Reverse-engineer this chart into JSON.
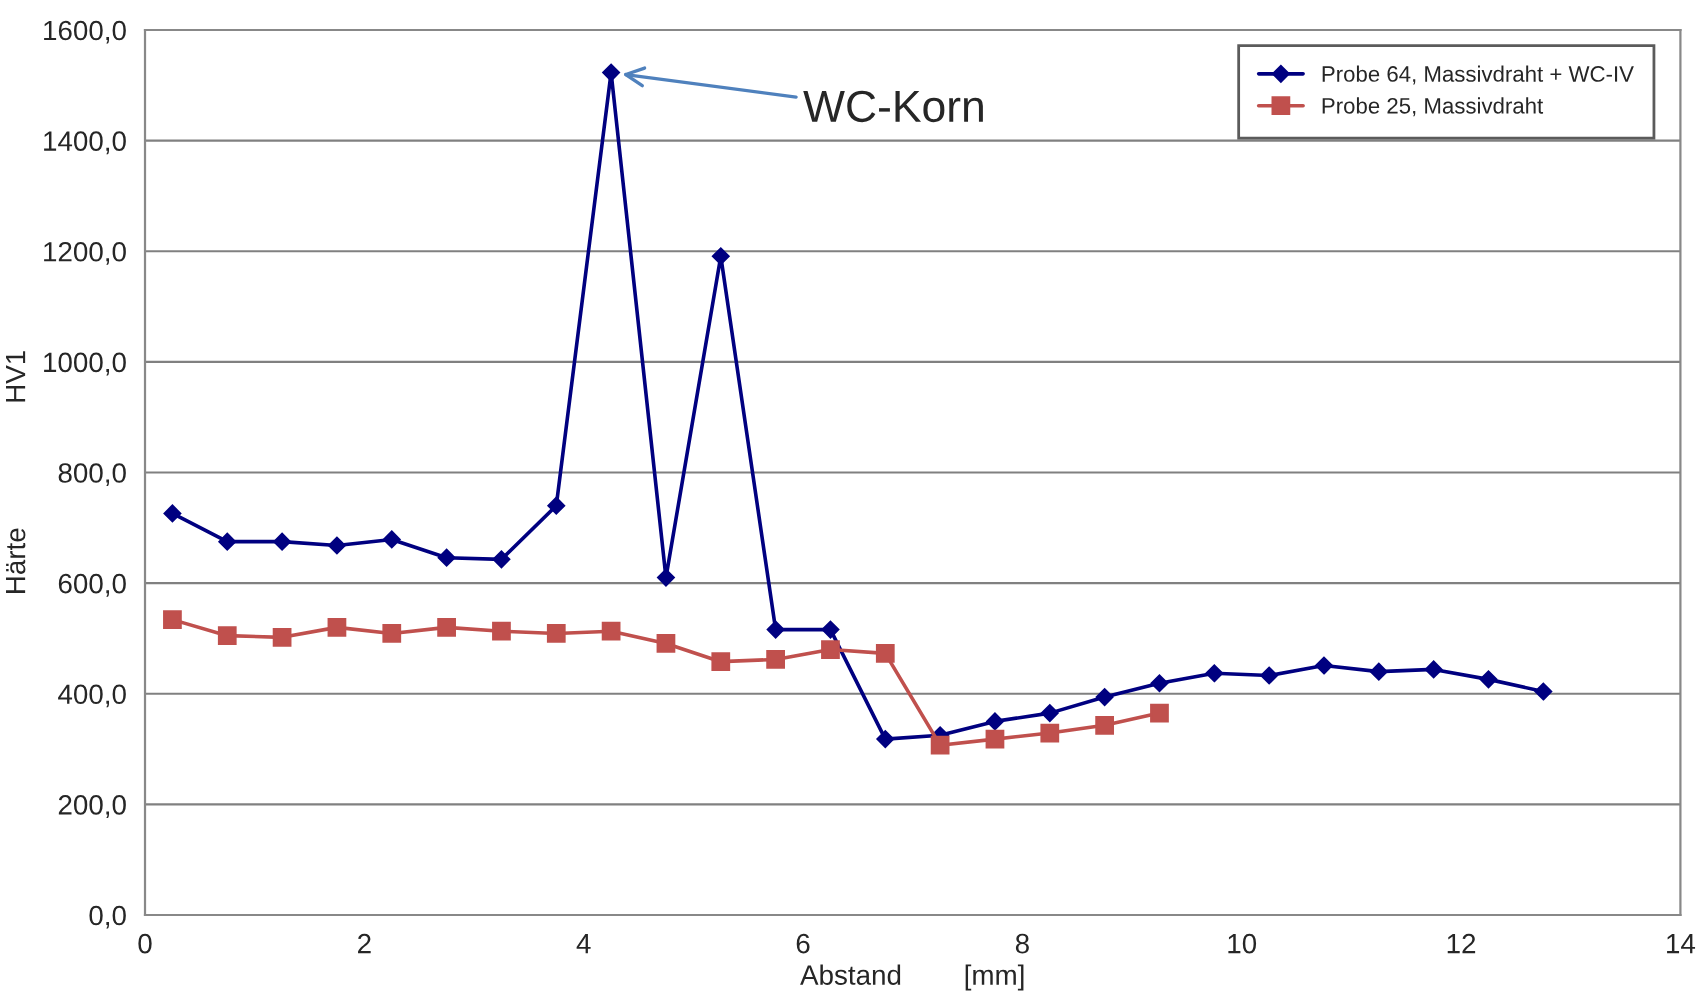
{
  "chart_data": {
    "type": "line",
    "xlabel": "Abstand        [mm]",
    "ylabel": "Härte                HV1",
    "series": [
      {
        "name": "Probe 64, Massivdraht + WC-IV",
        "color": "#000080",
        "marker": "diamond",
        "x": [
          0.25,
          0.75,
          1.25,
          1.75,
          2.25,
          2.75,
          3.25,
          3.75,
          4.25,
          4.75,
          5.25,
          5.75,
          6.25,
          6.75,
          7.25,
          7.75,
          8.25,
          8.75,
          9.25,
          9.75,
          10.25,
          10.75,
          11.25,
          11.75,
          12.25,
          12.75
        ],
        "values": [
          726,
          675,
          675,
          668,
          679,
          646,
          643,
          740,
          1523,
          610,
          1191,
          516,
          516,
          318,
          325,
          350,
          365,
          394,
          419,
          437,
          433,
          451,
          440,
          444,
          426,
          404
        ]
      },
      {
        "name": "Probe 25, Massivdraht",
        "color": "#c0504d",
        "marker": "square",
        "x": [
          0.25,
          0.75,
          1.25,
          1.75,
          2.25,
          2.75,
          3.25,
          3.75,
          4.25,
          4.75,
          5.25,
          5.75,
          6.25,
          6.75,
          7.25,
          7.75,
          8.25,
          8.75,
          9.25
        ],
        "values": [
          534,
          505,
          502,
          520,
          509,
          520,
          513,
          509,
          513,
          491,
          458,
          462,
          480,
          473,
          307,
          318,
          329,
          343,
          365
        ]
      }
    ],
    "xlim": [
      0,
      14
    ],
    "xticks": [
      0,
      2,
      4,
      6,
      8,
      10,
      12,
      14
    ],
    "ylim": [
      0,
      1600
    ],
    "yticks": [
      {
        "value": 0,
        "label": "0,0"
      },
      {
        "value": 200,
        "label": "200,0"
      },
      {
        "value": 400,
        "label": "400,0"
      },
      {
        "value": 600,
        "label": "600,0"
      },
      {
        "value": 800,
        "label": "800,0"
      },
      {
        "value": 1000,
        "label": "1000,0"
      },
      {
        "value": 1200,
        "label": "1200,0"
      },
      {
        "value": 1400,
        "label": "1400,0"
      },
      {
        "value": 1600,
        "label": "1600,0"
      }
    ],
    "grid": "y",
    "legend": "top right",
    "line_style": "solid",
    "annotations": [
      {
        "text": "WC-Korn",
        "x": 4.25,
        "y": 1523
      }
    ]
  }
}
